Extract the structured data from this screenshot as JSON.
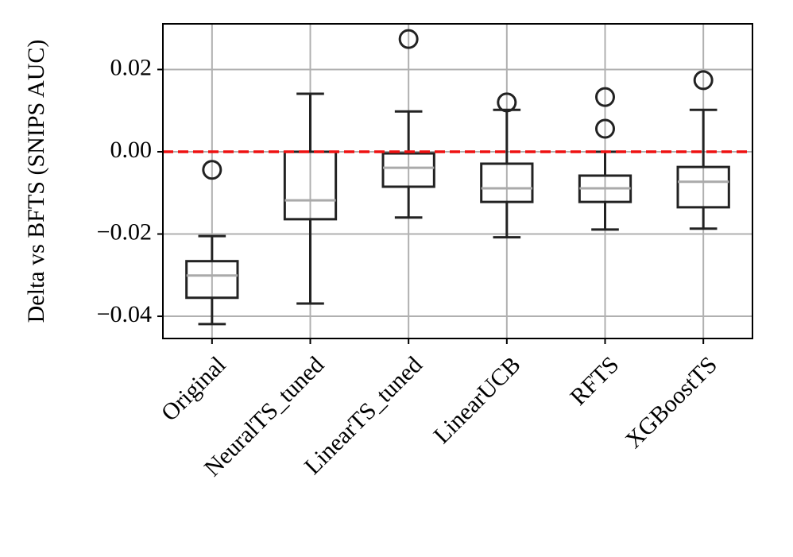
{
  "chart_data": {
    "type": "box",
    "ylabel": "Delta vs BFTS (SNIPS AUC)",
    "categories": [
      "Original",
      "NeuralTS_tuned",
      "LinearTS_tuned",
      "LinearUCB",
      "RFTS",
      "XGBoostTS"
    ],
    "boxes": [
      {
        "whislo": -0.0419,
        "q1": -0.0355,
        "med": -0.0301,
        "q3": -0.0266,
        "whishi": -0.0205,
        "fliers": [
          -0.0044
        ]
      },
      {
        "whislo": -0.0369,
        "q1": -0.0164,
        "med": -0.0118,
        "q3": 0.0,
        "whishi": 0.0141,
        "fliers": []
      },
      {
        "whislo": -0.016,
        "q1": -0.0085,
        "med": -0.0039,
        "q3": -0.0004,
        "whishi": 0.0098,
        "fliers": [
          0.0274
        ]
      },
      {
        "whislo": -0.0208,
        "q1": -0.0122,
        "med": -0.0089,
        "q3": -0.0029,
        "whishi": 0.0102,
        "fliers": [
          0.012
        ]
      },
      {
        "whislo": -0.0189,
        "q1": -0.0122,
        "med": -0.0089,
        "q3": -0.0058,
        "whishi": 0.0,
        "fliers": [
          0.0133,
          0.0056
        ]
      },
      {
        "whislo": -0.0187,
        "q1": -0.0135,
        "med": -0.0073,
        "q3": -0.0037,
        "whishi": 0.0102,
        "fliers": [
          0.0174
        ]
      }
    ],
    "box_color": "#222222",
    "median_color": "#aaaaaa",
    "reference_line": {
      "value": 0,
      "color": "#ee1111",
      "dashed": true
    },
    "ylim": [
      -0.0454,
      0.0311
    ],
    "yticks": [
      {
        "value": -0.04,
        "label": "−0.04"
      },
      {
        "value": -0.02,
        "label": "−0.02"
      },
      {
        "value": 0,
        "label": "0.00"
      },
      {
        "value": 0.02,
        "label": "0.02"
      }
    ],
    "grid": true
  }
}
